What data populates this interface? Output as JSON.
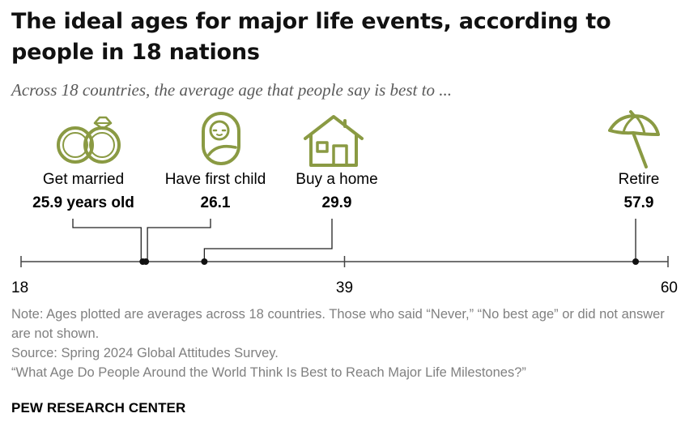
{
  "header": {
    "title": "The ideal ages for major life events, according to people in 18 nations",
    "subtitle": "Across 18 countries, the average age that people say is best to ..."
  },
  "chart_data": {
    "type": "scatter",
    "title": "The ideal ages for major life events, according to people in 18 nations",
    "subtitle": "Across 18 countries, the average age that people say is best to ...",
    "xlim": [
      18,
      60
    ],
    "ticks": [
      18,
      39,
      60
    ],
    "series": [
      {
        "event": "Get married",
        "value": 25.9,
        "value_label": "25.9 years old",
        "icon": "rings-icon"
      },
      {
        "event": "Have first child",
        "value": 26.1,
        "value_label": "26.1",
        "icon": "baby-icon"
      },
      {
        "event": "Buy a home",
        "value": 29.9,
        "value_label": "29.9",
        "icon": "house-icon"
      },
      {
        "event": "Retire",
        "value": 57.9,
        "value_label": "57.9",
        "icon": "beach-umbrella-icon"
      }
    ],
    "icon_color": "#8a9a43",
    "axis_color": "#444444"
  },
  "notes": {
    "note": "Note: Ages plotted are averages across 18 countries. Those who said “Never,” “No best age” or did not answer are not shown.",
    "source": "Source: Spring 2024 Global Attitudes Survey.",
    "report": "“What Age Do People Around the World Think Is Best to Reach Major Life Milestones?”"
  },
  "footer": {
    "brand": "PEW RESEARCH CENTER"
  }
}
